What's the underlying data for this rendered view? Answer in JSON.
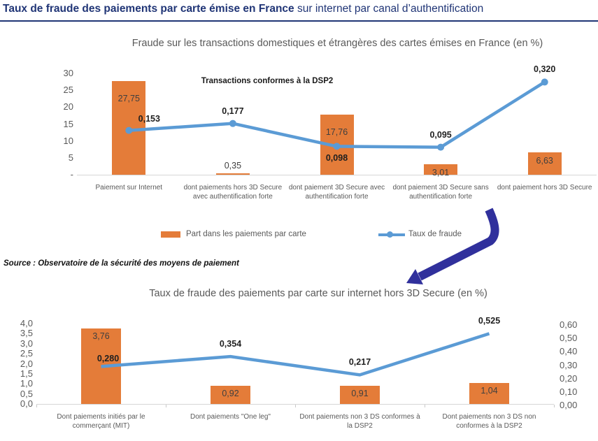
{
  "page": {
    "title_bold": "Taux de fraude des paiements par carte émise en France",
    "title_regular": " sur internet par canal d’authentification",
    "source_note": "Source : Observatoire de la sécurité des moyens de paiement"
  },
  "colors": {
    "bar": "#e47c39",
    "line": "#5b9bd5",
    "arrow": "#30309c",
    "title_navy": "#203576",
    "chart_title_gray": "#595959"
  },
  "legend": {
    "bar_label": "Part dans les paiements par carte",
    "line_label": "Taux de fraude"
  },
  "chart_data": [
    {
      "type": "bar+line",
      "title": "Fraude sur les transactions domestiques et étrangères des cartes émises en France (en %)",
      "annotation": "Transactions conformes à la DSP2",
      "legend_position": "bottom",
      "grid": false,
      "categories": [
        "Paiement sur Internet",
        "dont paiements hors 3D Secure avec authentification forte",
        "dont paiement 3D Secure avec authentification forte",
        "dont paiement 3D Secure sans authentification forte",
        "dont paiement hors 3D Secure"
      ],
      "left_axis": {
        "min": 0,
        "max": 30,
        "tick_labels": [
          "30",
          "25",
          "20",
          "15",
          "10",
          "5",
          "-"
        ]
      },
      "right_axis": {
        "min": 0,
        "max": 0.35,
        "tick_labels": []
      },
      "series": [
        {
          "name": "Part dans les paiements par carte",
          "type": "bar",
          "axis": "left",
          "values": [
            27.75,
            0.35,
            17.76,
            3.01,
            6.63
          ],
          "labels": [
            "27,75",
            "0,35",
            "17,76",
            "3,01",
            "6,63"
          ],
          "label_pos": [
            "inside",
            "above",
            "inside",
            "inside",
            "inside"
          ]
        },
        {
          "name": "Taux de fraude",
          "type": "line",
          "axis": "right",
          "markers": true,
          "values": [
            0.153,
            0.177,
            0.098,
            0.095,
            0.32
          ],
          "labels": [
            "0,153",
            "0,177",
            "0,098",
            "0,095",
            "0,320"
          ],
          "label_pos": [
            "above-right",
            "above",
            "below",
            "above",
            "above"
          ]
        }
      ]
    },
    {
      "type": "bar+line",
      "title": "Taux de fraude des paiements par carte sur internet hors 3D Secure (en %)",
      "annotation": "",
      "grid": false,
      "categories": [
        "Dont paiements initiés   par le commerçant (MIT)",
        "Dont paiements \"One leg\"",
        "Dont paiements non 3 DS conformes à la DSP2",
        "Dont paiements non 3 DS non conformes à la DSP2"
      ],
      "left_axis": {
        "min": 0,
        "max": 4,
        "tick_labels": [
          "4,0",
          "3,5",
          "3,0",
          "2,5",
          "2,0",
          "1,5",
          "1,0",
          "0,5",
          "0,0"
        ]
      },
      "right_axis": {
        "min": 0,
        "max": 0.6,
        "tick_labels": [
          "0,60",
          "0,50",
          "0,40",
          "0,30",
          "0,20",
          "0,10",
          "0,00"
        ]
      },
      "series": [
        {
          "name": "Part dans les paiements par carte",
          "type": "bar",
          "axis": "left",
          "values": [
            3.76,
            0.92,
            0.91,
            1.04
          ],
          "labels": [
            "3,76",
            "0,92",
            "0,91",
            "1,04"
          ],
          "label_pos": [
            "inside",
            "inside",
            "inside",
            "inside"
          ]
        },
        {
          "name": "Taux de fraude",
          "type": "line",
          "axis": "right",
          "markers": false,
          "values": [
            0.28,
            0.354,
            0.217,
            0.525
          ],
          "labels": [
            "0,280",
            "0,354",
            "0,217",
            "0,525"
          ],
          "label_pos": [
            "above-tight",
            "above",
            "above",
            "above"
          ]
        }
      ]
    }
  ]
}
